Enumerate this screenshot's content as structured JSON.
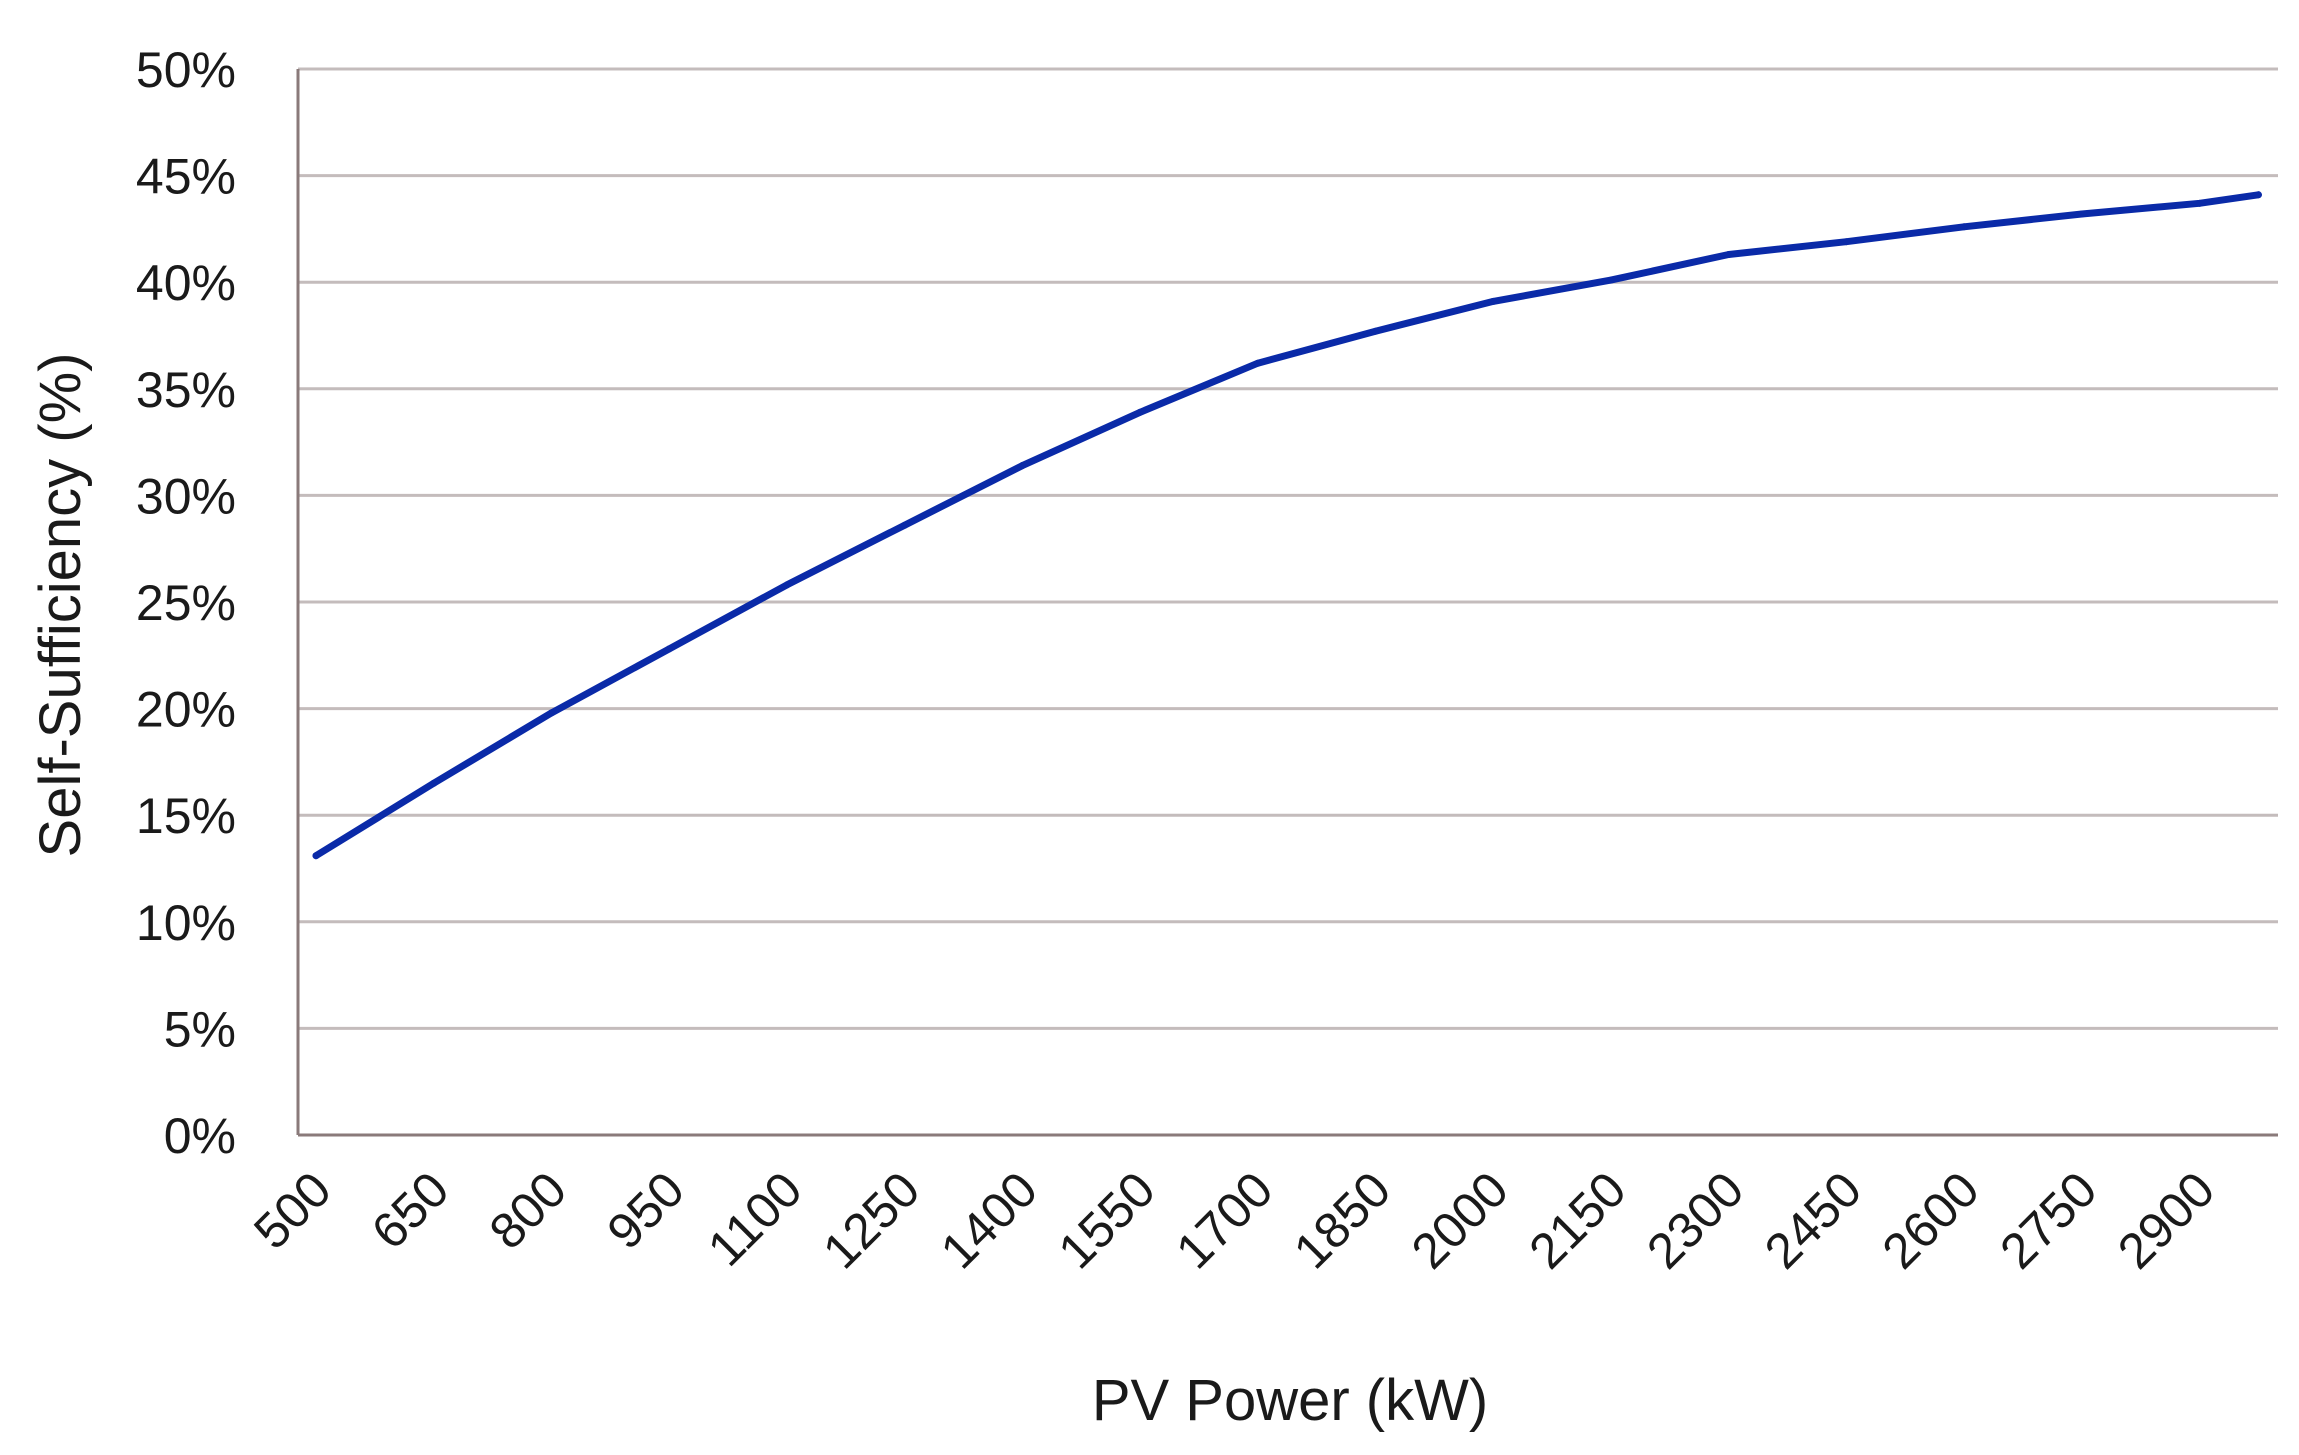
{
  "chart_data": {
    "type": "line",
    "title": "",
    "xlabel": "PV Power (kW)",
    "ylabel": "Self-Sufficiency (%)",
    "ylim": [
      0,
      50
    ],
    "y_ticks": [
      "0%",
      "5%",
      "10%",
      "15%",
      "20%",
      "25%",
      "30%",
      "35%",
      "40%",
      "45%",
      "50%"
    ],
    "y_tick_values": [
      0,
      5,
      10,
      15,
      20,
      25,
      30,
      35,
      40,
      45,
      50
    ],
    "x_tick_labels": [
      "500",
      "650",
      "800",
      "950",
      "1100",
      "1250",
      "1400",
      "1550",
      "1700",
      "1850",
      "2000",
      "2150",
      "2300",
      "2450",
      "2600",
      "2750",
      "2900"
    ],
    "x_tick_values": [
      500,
      650,
      800,
      950,
      1100,
      1250,
      1400,
      1550,
      1700,
      1850,
      2000,
      2150,
      2300,
      2450,
      2600,
      2750,
      2900
    ],
    "xlim": [
      477,
      3000
    ],
    "grid": true,
    "series": [
      {
        "name": "Self-Sufficiency",
        "color": "#0a2aa8",
        "x": [
          500,
          650,
          800,
          950,
          1100,
          1250,
          1400,
          1550,
          1700,
          1850,
          2000,
          2150,
          2300,
          2450,
          2600,
          2750,
          2900,
          2975
        ],
        "y": [
          13.1,
          16.5,
          19.8,
          22.8,
          25.8,
          28.6,
          31.4,
          33.9,
          36.2,
          37.7,
          39.1,
          40.1,
          41.3,
          41.9,
          42.6,
          43.2,
          43.7,
          44.1
        ]
      }
    ]
  },
  "colors": {
    "axis": "#8a7a7a",
    "grid": "#c4bcbc",
    "line": "#0a2aa8",
    "text": "#1a1a1a"
  }
}
